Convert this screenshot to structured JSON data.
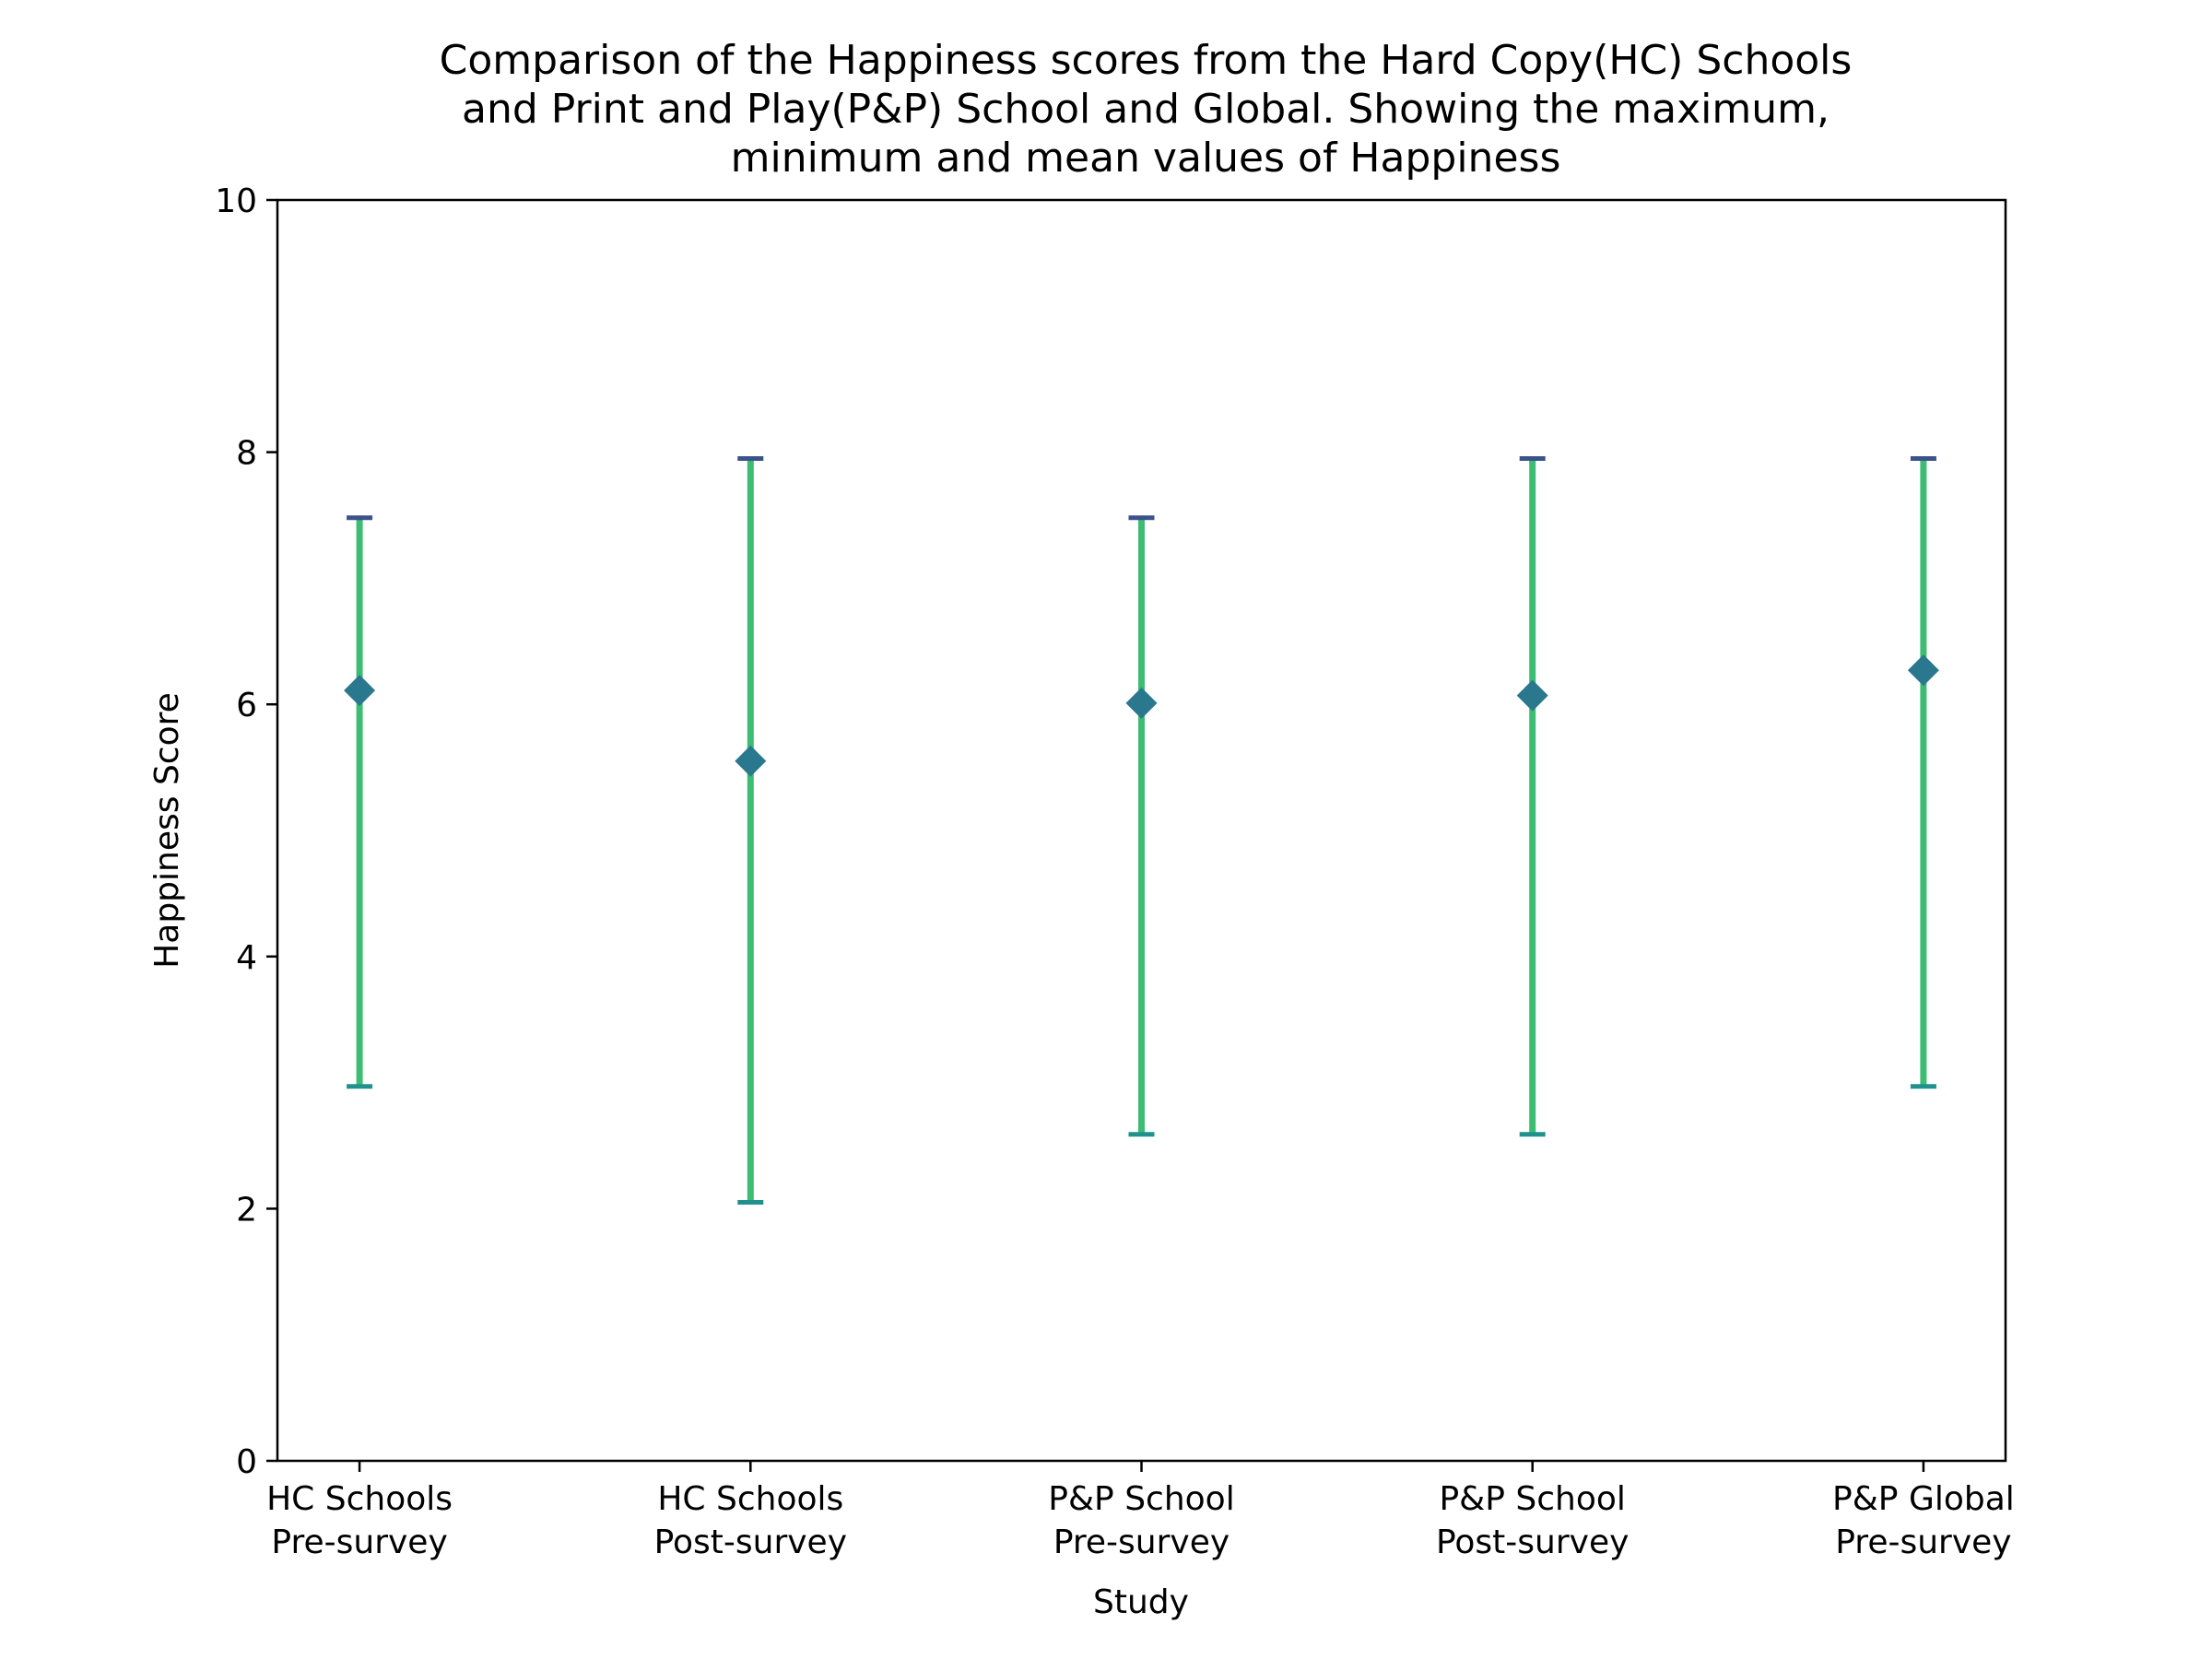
{
  "chart_data": {
    "type": "errorbar",
    "title_lines": [
      "Comparison of the Happiness scores from the Hard Copy(HC) Schools",
      "and Print and Play(P&P) School and Global. Showing the maximum,",
      "minimum and mean values of Happiness"
    ],
    "xlabel": "Study",
    "ylabel": "Happiness Score",
    "ylim": [
      0,
      10
    ],
    "yticks": [
      0,
      2,
      4,
      6,
      8,
      10
    ],
    "categories": [
      [
        "HC Schools",
        "Pre-survey"
      ],
      [
        "HC Schools",
        "Post-survey"
      ],
      [
        "P&P School",
        "Pre-survey"
      ],
      [
        "P&P School",
        "Post-survey"
      ],
      [
        "P&P Global",
        "Pre-survey"
      ]
    ],
    "series": [
      {
        "mean": [
          6.11,
          5.55,
          6.01,
          6.07,
          6.27
        ],
        "min": [
          2.97,
          2.05,
          2.59,
          2.59,
          2.97
        ],
        "max": [
          7.48,
          7.95,
          7.48,
          7.95,
          7.95
        ]
      }
    ],
    "grid": false,
    "colors": {
      "bar": "#3dbc74",
      "marker": "#2a788e",
      "cap_top": "#3b528b",
      "cap_bottom": "#21918c"
    }
  }
}
